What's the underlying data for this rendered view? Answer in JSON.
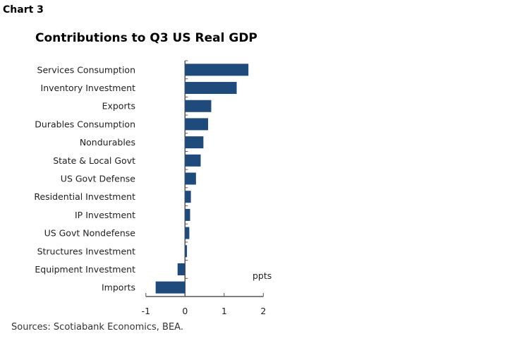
{
  "chart_label": "Chart 3",
  "source": "Sources: Scotiabank Economics, BEA.",
  "chart_data": {
    "type": "bar",
    "orientation": "horizontal",
    "title": "Contributions to Q3 US Real GDP",
    "xlabel": "ppts",
    "ylabel": "",
    "xlim": [
      -1,
      2
    ],
    "xticks": [
      "-1",
      "0",
      "1",
      "2"
    ],
    "grid": false,
    "color": "#1f4a7c",
    "categories": [
      "Services Consumption",
      "Inventory Investment",
      "Exports",
      "Durables Consumption",
      "Nondurables",
      "State & Local Govt",
      "US Govt Defense",
      "Residential Investment",
      "IP Investment",
      "US Govt Nondefense",
      "Structures Investment",
      "Equipment Investment",
      "Imports"
    ],
    "values": [
      1.62,
      1.32,
      0.67,
      0.59,
      0.47,
      0.4,
      0.28,
      0.15,
      0.13,
      0.11,
      0.05,
      -0.19,
      -0.75
    ]
  }
}
